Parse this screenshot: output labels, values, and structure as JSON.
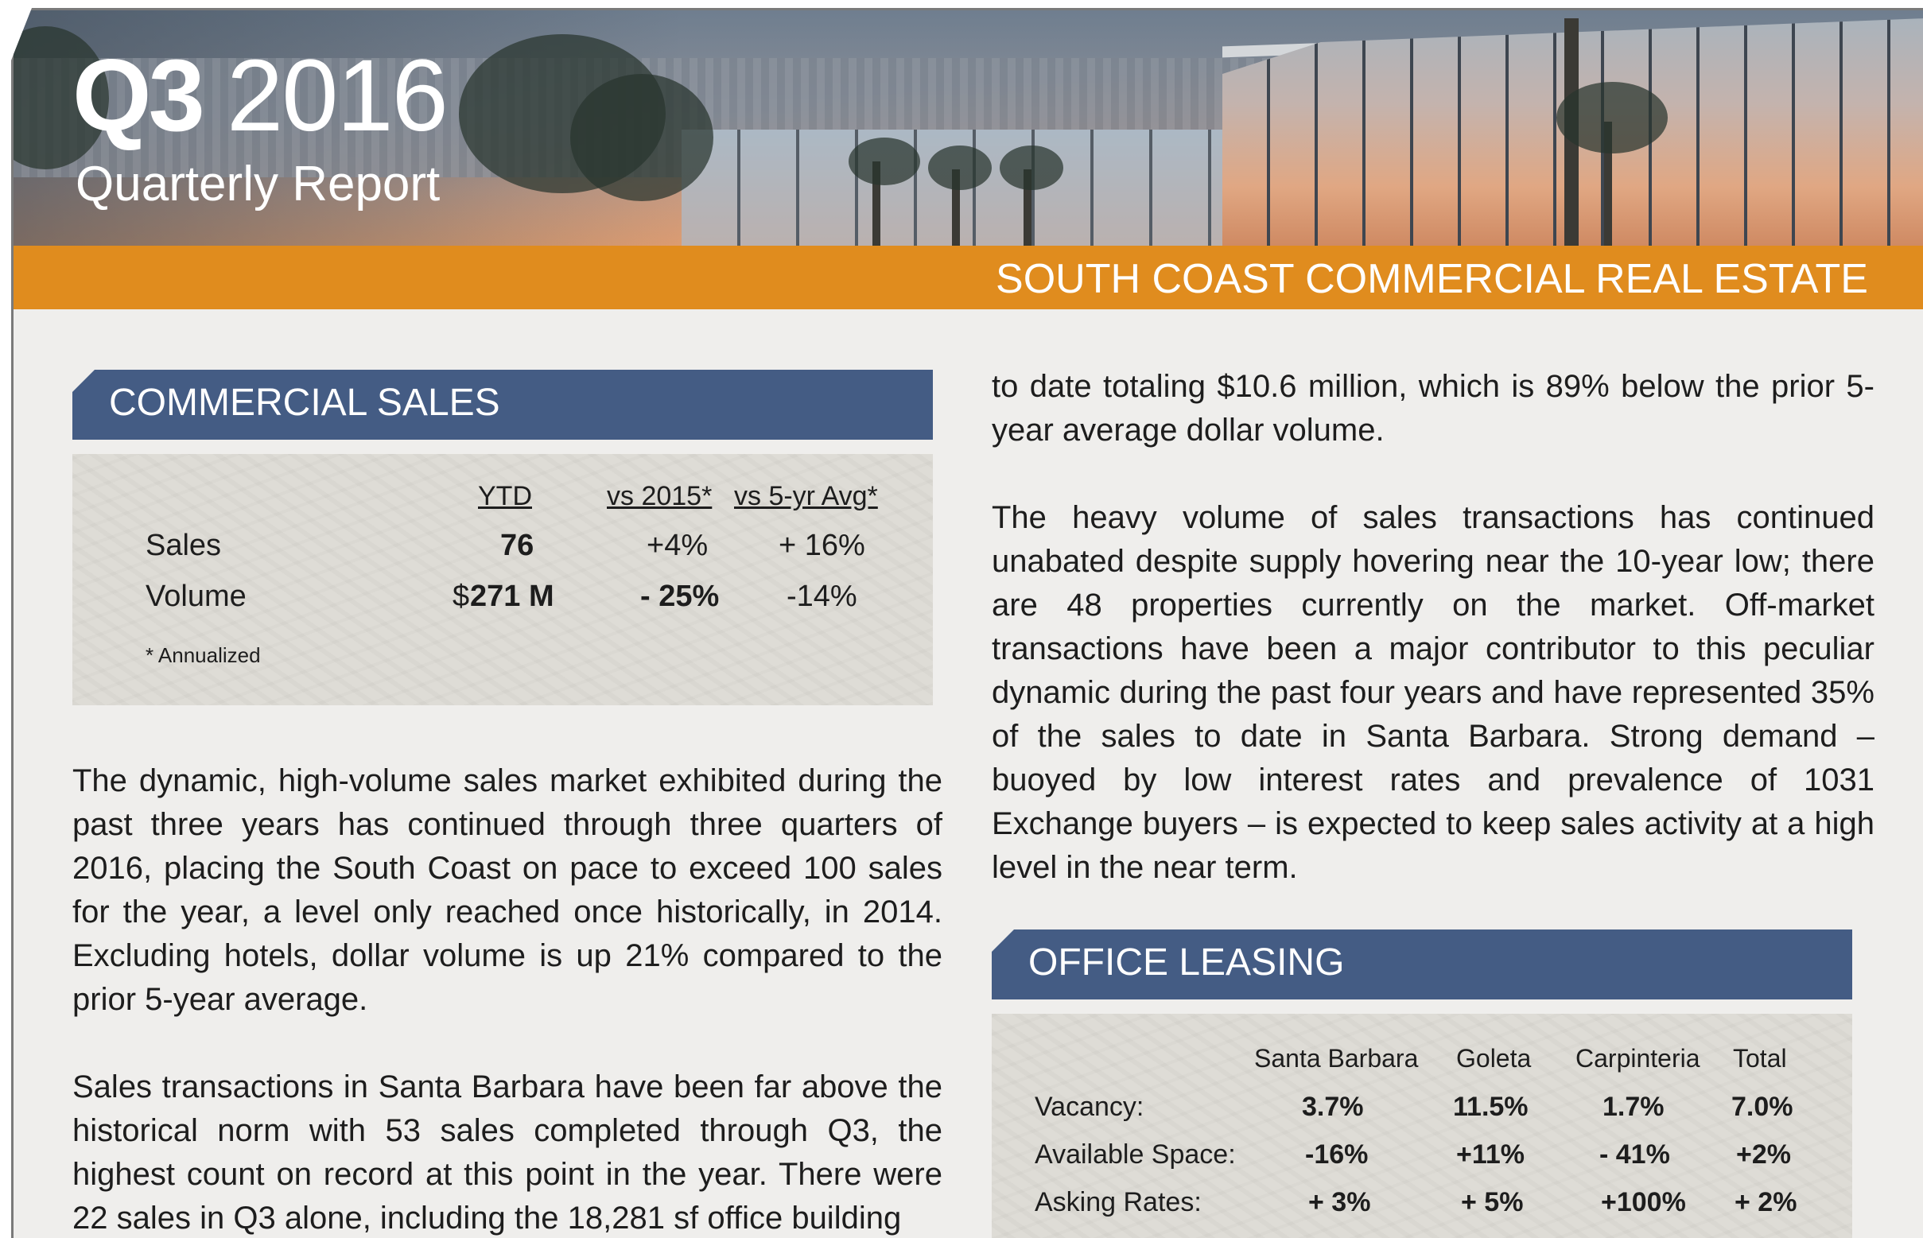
{
  "header": {
    "quarter": "Q3",
    "year": "2016",
    "subtitle": "Quarterly Report",
    "banner": "SOUTH COAST COMMERCIAL REAL ESTATE"
  },
  "commercial_sales": {
    "title": "COMMERCIAL SALES",
    "columns": [
      "YTD",
      "vs 2015*",
      "vs 5-yr Avg*"
    ],
    "rows": [
      {
        "label": "Sales",
        "ytd": "76",
        "vs2015": "+4%",
        "vs5yr": "+ 16%"
      },
      {
        "label": "Volume",
        "ytd_prefix": "$",
        "ytd": "271 M",
        "vs2015": "- 25%",
        "vs5yr": "-14%"
      }
    ],
    "note": "* Annualized"
  },
  "left_paragraphs": [
    "The dynamic, high-volume sales market exhibited during the past three years has continued through three quarters of 2016, placing the South Coast on pace to exceed 100 sales for the year, a level only reached once historically, in 2014. Excluding hotels, dollar volume is up 21% compared to the prior 5-year average.",
    "Sales transactions in Santa Barbara have been far above the historical norm with 53 sales completed through Q3, the highest count on record at this point in the year. There were 22 sales in Q3 alone, including the 18,281 sf office building"
  ],
  "right_paragraphs": [
    "to date totaling $10.6 million, which is 89% below the prior 5-year average dollar volume.",
    "The heavy volume of sales transactions has continued unabated despite supply hovering near the 10-year low; there are 48 properties currently on the market. Off-market transactions have been a major contributor to this peculiar dynamic during the past four years and have represented 35% of the sales to date in Santa Barbara. Strong demand – buoyed by low interest rates and prevalence of 1031 Exchange buyers – is expected to keep sales activity at a high level in the near term."
  ],
  "office_leasing": {
    "title": "OFFICE LEASING",
    "columns": [
      "Santa Barbara",
      "Goleta",
      "Carpinteria",
      "Total"
    ],
    "rows": [
      {
        "label": "Vacancy:",
        "values": [
          "3.7%",
          "11.5%",
          "1.7%",
          "7.0%"
        ]
      },
      {
        "label": "Available Space:",
        "values": [
          "-16%",
          "+11%",
          "- 41%",
          "+2%"
        ]
      },
      {
        "label": "Asking Rates:",
        "values": [
          "+ 3%",
          "+ 5%",
          "+100%",
          "+ 2%"
        ]
      }
    ]
  }
}
